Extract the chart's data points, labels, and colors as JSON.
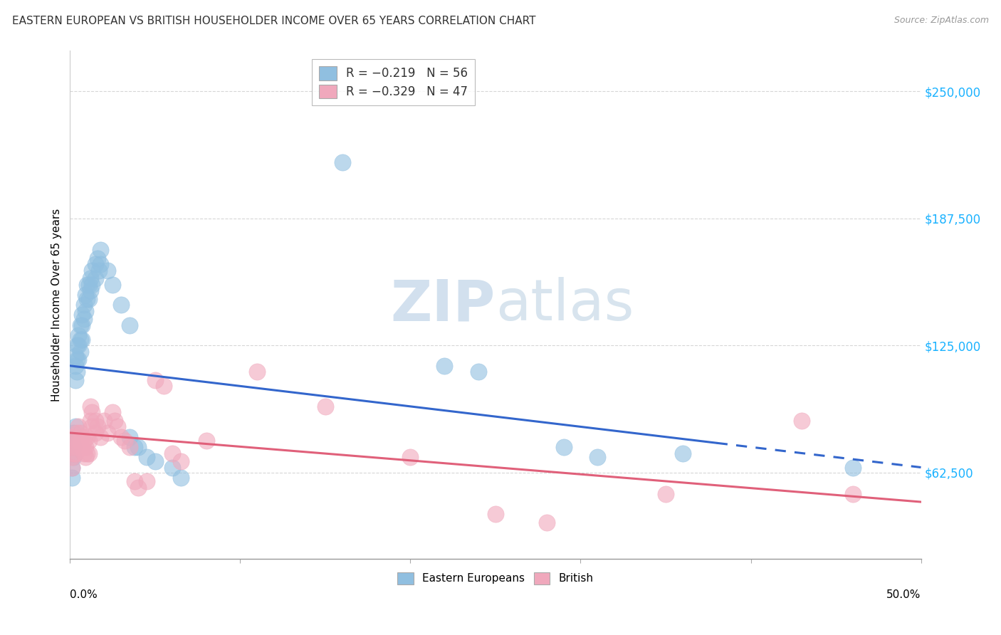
{
  "title": "EASTERN EUROPEAN VS BRITISH HOUSEHOLDER INCOME OVER 65 YEARS CORRELATION CHART",
  "source": "Source: ZipAtlas.com",
  "ylabel": "Householder Income Over 65 years",
  "xmin": 0.0,
  "xmax": 0.5,
  "ymin": 20000,
  "ymax": 270000,
  "yticks": [
    62500,
    125000,
    187500,
    250000
  ],
  "ytick_labels": [
    "$62,500",
    "$125,000",
    "$187,500",
    "$250,000"
  ],
  "blue_color": "#90bfe0",
  "pink_color": "#f0a8bc",
  "blue_line_color": "#3366cc",
  "pink_line_color": "#e0607a",
  "watermark_zip": "ZIP",
  "watermark_atlas": "atlas",
  "grid_color": "#cccccc",
  "bg_color": "#ffffff",
  "blue_points": [
    [
      0.001,
      78000
    ],
    [
      0.001,
      72000
    ],
    [
      0.001,
      65000
    ],
    [
      0.001,
      60000
    ],
    [
      0.002,
      82000
    ],
    [
      0.002,
      75000
    ],
    [
      0.002,
      70000
    ],
    [
      0.003,
      120000
    ],
    [
      0.003,
      115000
    ],
    [
      0.003,
      108000
    ],
    [
      0.003,
      85000
    ],
    [
      0.004,
      125000
    ],
    [
      0.004,
      118000
    ],
    [
      0.004,
      112000
    ],
    [
      0.005,
      130000
    ],
    [
      0.005,
      125000
    ],
    [
      0.005,
      118000
    ],
    [
      0.006,
      135000
    ],
    [
      0.006,
      128000
    ],
    [
      0.006,
      122000
    ],
    [
      0.007,
      140000
    ],
    [
      0.007,
      135000
    ],
    [
      0.007,
      128000
    ],
    [
      0.008,
      145000
    ],
    [
      0.008,
      138000
    ],
    [
      0.009,
      150000
    ],
    [
      0.009,
      142000
    ],
    [
      0.01,
      155000
    ],
    [
      0.01,
      148000
    ],
    [
      0.011,
      155000
    ],
    [
      0.011,
      148000
    ],
    [
      0.012,
      158000
    ],
    [
      0.012,
      152000
    ],
    [
      0.013,
      162000
    ],
    [
      0.013,
      155000
    ],
    [
      0.015,
      165000
    ],
    [
      0.015,
      158000
    ],
    [
      0.016,
      168000
    ],
    [
      0.017,
      162000
    ],
    [
      0.018,
      172000
    ],
    [
      0.018,
      165000
    ],
    [
      0.022,
      162000
    ],
    [
      0.025,
      155000
    ],
    [
      0.03,
      145000
    ],
    [
      0.035,
      135000
    ],
    [
      0.035,
      80000
    ],
    [
      0.038,
      75000
    ],
    [
      0.04,
      75000
    ],
    [
      0.045,
      70000
    ],
    [
      0.05,
      68000
    ],
    [
      0.06,
      65000
    ],
    [
      0.065,
      60000
    ],
    [
      0.16,
      215000
    ],
    [
      0.22,
      115000
    ],
    [
      0.24,
      112000
    ],
    [
      0.29,
      75000
    ],
    [
      0.31,
      70000
    ],
    [
      0.36,
      72000
    ],
    [
      0.46,
      65000
    ]
  ],
  "pink_points": [
    [
      0.001,
      75000
    ],
    [
      0.001,
      70000
    ],
    [
      0.001,
      65000
    ],
    [
      0.002,
      80000
    ],
    [
      0.002,
      72000
    ],
    [
      0.003,
      78000
    ],
    [
      0.003,
      72000
    ],
    [
      0.004,
      82000
    ],
    [
      0.004,
      75000
    ],
    [
      0.005,
      85000
    ],
    [
      0.005,
      78000
    ],
    [
      0.006,
      82000
    ],
    [
      0.006,
      78000
    ],
    [
      0.007,
      80000
    ],
    [
      0.007,
      75000
    ],
    [
      0.008,
      78000
    ],
    [
      0.008,
      72000
    ],
    [
      0.009,
      75000
    ],
    [
      0.009,
      70000
    ],
    [
      0.01,
      80000
    ],
    [
      0.01,
      72000
    ],
    [
      0.011,
      78000
    ],
    [
      0.011,
      72000
    ],
    [
      0.012,
      95000
    ],
    [
      0.012,
      88000
    ],
    [
      0.013,
      92000
    ],
    [
      0.013,
      85000
    ],
    [
      0.015,
      88000
    ],
    [
      0.015,
      82000
    ],
    [
      0.016,
      85000
    ],
    [
      0.018,
      80000
    ],
    [
      0.02,
      88000
    ],
    [
      0.022,
      82000
    ],
    [
      0.025,
      92000
    ],
    [
      0.026,
      88000
    ],
    [
      0.028,
      85000
    ],
    [
      0.03,
      80000
    ],
    [
      0.032,
      78000
    ],
    [
      0.035,
      75000
    ],
    [
      0.038,
      58000
    ],
    [
      0.04,
      55000
    ],
    [
      0.045,
      58000
    ],
    [
      0.05,
      108000
    ],
    [
      0.055,
      105000
    ],
    [
      0.06,
      72000
    ],
    [
      0.065,
      68000
    ],
    [
      0.08,
      78000
    ],
    [
      0.11,
      112000
    ],
    [
      0.15,
      95000
    ],
    [
      0.2,
      70000
    ],
    [
      0.25,
      42000
    ],
    [
      0.28,
      38000
    ],
    [
      0.35,
      52000
    ],
    [
      0.43,
      88000
    ],
    [
      0.46,
      52000
    ]
  ],
  "blue_line_x0": 0.0,
  "blue_line_y0": 115000,
  "blue_line_x1": 0.5,
  "blue_line_y1": 65000,
  "pink_line_x0": 0.0,
  "pink_line_y0": 82000,
  "pink_line_x1": 0.5,
  "pink_line_y1": 48000
}
